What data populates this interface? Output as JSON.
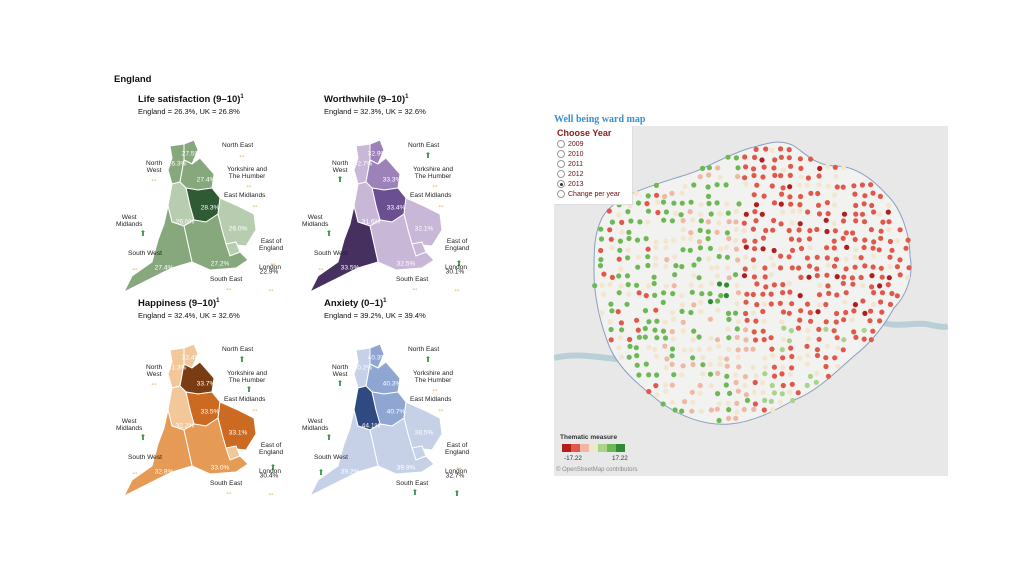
{
  "england": {
    "title": "England",
    "panels": [
      {
        "key": "life",
        "title": "Life satisfaction (9–10)",
        "sup": "1",
        "subtitle": "England = 26.3%, UK = 26.8%",
        "values": {
          "ne": "27.5%",
          "nw": "26.3%",
          "yh": "27.4%",
          "em": "28.3%",
          "wm": "26.0%",
          "ee": "26.0%",
          "sw": "27.4%",
          "se": "27.2%",
          "lon": "22.9%"
        }
      },
      {
        "key": "worth",
        "title": "Worthwhile (9–10)",
        "sup": "1",
        "subtitle": "England = 32.3%, UK = 32.6%",
        "values": {
          "ne": "32.9%",
          "nw": "32.7%",
          "yh": "33.3%",
          "em": "33.4%",
          "wm": "31.6%",
          "ee": "32.1%",
          "sw": "33.5%",
          "se": "32.5%",
          "lon": "30.1%"
        }
      },
      {
        "key": "happy",
        "title": "Happiness (9–10)",
        "sup": "1",
        "subtitle": "England = 32.4%, UK = 32.6%",
        "values": {
          "ne": "32.4%",
          "nw": "31.3%",
          "yh": "33.7%",
          "em": "33.5%",
          "wm": "32.2%",
          "ee": "33.1%",
          "sw": "32.8%",
          "se": "33.0%",
          "lon": "30.4%"
        }
      },
      {
        "key": "anx",
        "title": "Anxiety (0–1)",
        "sup": "1",
        "subtitle": "England = 39.2%, UK = 39.4%",
        "values": {
          "ne": "40.3%",
          "nw": "40.2%",
          "yh": "40.3%",
          "em": "40.7%",
          "wm": "44.1%",
          "ee": "38.5%",
          "sw": "39.2%",
          "se": "39.9%",
          "lon": "32.7%"
        }
      }
    ],
    "region_names": {
      "ne": "North East",
      "nw": "North\nWest",
      "yh": "Yorkshire and\nThe Humber",
      "em": "East Midlands",
      "wm": "West\nMidlands",
      "ee": "East of\nEngland",
      "sw": "South West",
      "se": "South East",
      "lon": "London"
    },
    "arrows": {
      "life": {
        "ne": "same",
        "nw": "same",
        "yh": "same",
        "em": "same",
        "wm": "up",
        "ee": "same",
        "sw": "same",
        "se": "same",
        "lon": "same"
      },
      "worth": {
        "ne": "up",
        "nw": "up",
        "yh": "same",
        "em": "same",
        "wm": "up",
        "ee": "up",
        "sw": "same",
        "se": "same",
        "lon": "same"
      },
      "happy": {
        "ne": "up",
        "nw": "same",
        "yh": "up",
        "em": "same",
        "wm": "up",
        "ee": "up",
        "sw": "same",
        "se": "same",
        "lon": "same"
      },
      "anx": {
        "ne": "up",
        "nw": "up",
        "yh": "same",
        "em": "same",
        "wm": "up",
        "ee": "same",
        "sw": "up",
        "se": "up",
        "lon": "up"
      }
    },
    "palettes": {
      "life": {
        "light": "#b8ccb0",
        "mid": "#86a87c",
        "dark": "#4f7a4c",
        "darkest": "#2f5a34"
      },
      "worth": {
        "light": "#c9b7d8",
        "mid": "#9c82b8",
        "dark": "#6a5090",
        "darkest": "#45305f"
      },
      "happy": {
        "light": "#f2c79a",
        "mid": "#e59a55",
        "dark": "#cc6a22",
        "darkest": "#7a3c12"
      },
      "anx": {
        "light": "#c6d1e8",
        "mid": "#8fa6d2",
        "dark": "#5577b5",
        "darkest": "#2e4a80"
      }
    }
  },
  "ward_map": {
    "title": "Well being ward map",
    "year_selector": {
      "title": "Choose Year",
      "options": [
        "2009",
        "2010",
        "2011",
        "2012",
        "2013",
        "Change per year"
      ],
      "selected": "2013"
    },
    "legend": {
      "title": "Thematic measure",
      "min": "-17.22",
      "max": "17.22",
      "colors": [
        "#b01e1e",
        "#e0584a",
        "#f0b7a4",
        "#f3e6d0",
        "#a9d28a",
        "#6cb855",
        "#2f8a32"
      ]
    },
    "attribution": "© OpenStreetMap contributors"
  }
}
